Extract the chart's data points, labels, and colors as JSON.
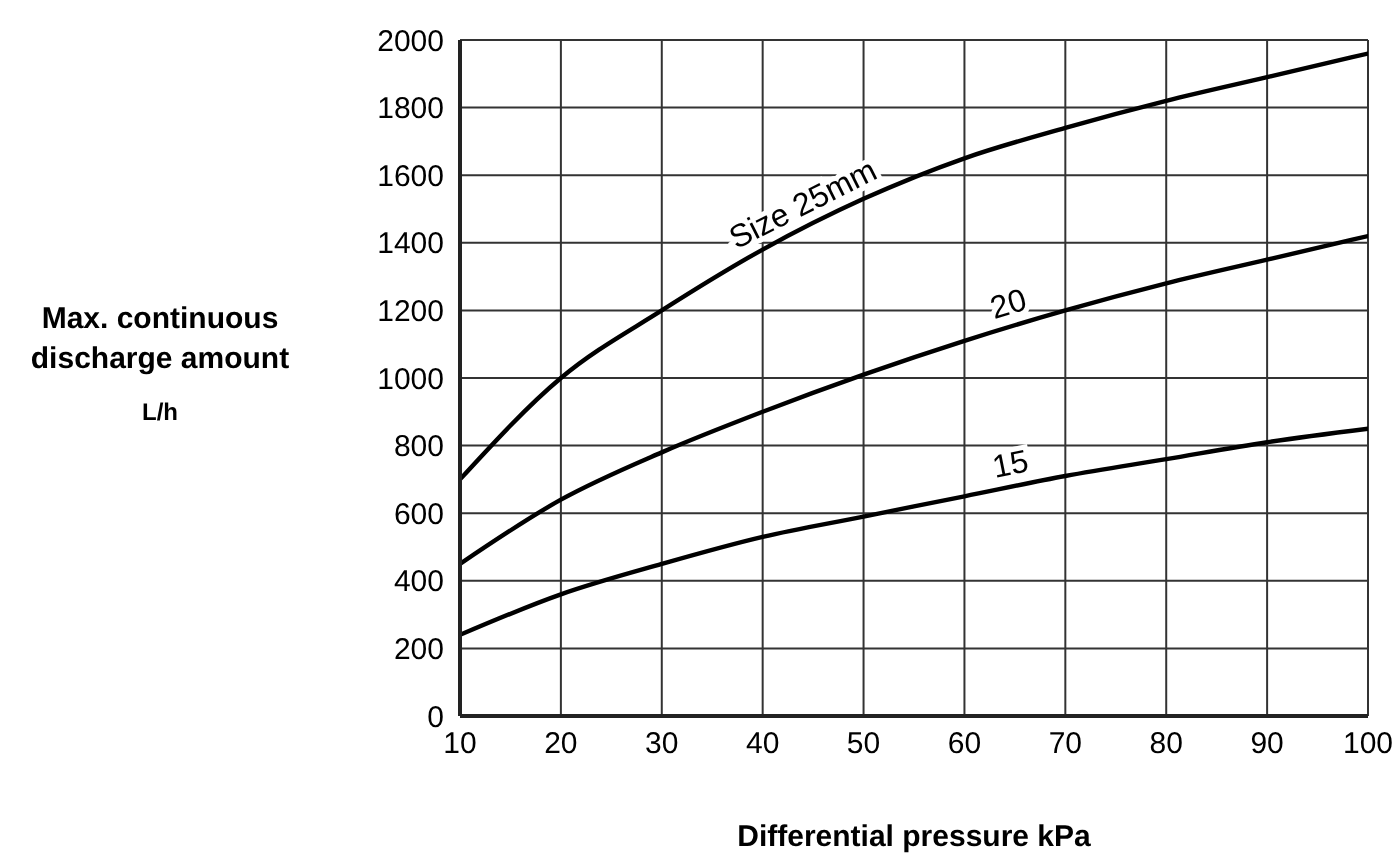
{
  "chart_data": {
    "type": "line",
    "xlabel": "Differential pressure  kPa",
    "ylabel": "Max. continuous\ndischarge amount\nL/h",
    "x": [
      10,
      20,
      30,
      40,
      50,
      60,
      70,
      80,
      90,
      100
    ],
    "series": [
      {
        "name": "Size 25mm",
        "color": "#000000",
        "values": [
          700,
          1000,
          1200,
          1380,
          1530,
          1650,
          1740,
          1820,
          1890,
          1960
        ]
      },
      {
        "name": "20",
        "color": "#000000",
        "values": [
          450,
          640,
          780,
          900,
          1010,
          1110,
          1200,
          1280,
          1350,
          1420
        ]
      },
      {
        "name": "15",
        "color": "#000000",
        "values": [
          240,
          360,
          450,
          530,
          590,
          650,
          710,
          760,
          810,
          850
        ]
      }
    ],
    "xlim": [
      10,
      100
    ],
    "xticks": [
      10,
      20,
      30,
      40,
      50,
      60,
      70,
      80,
      90,
      100
    ],
    "ylim": [
      0,
      2000
    ],
    "yticks": [
      0,
      200,
      400,
      600,
      800,
      1000,
      1200,
      1400,
      1600,
      1800,
      2000
    ],
    "grid": true,
    "marker": "none",
    "line_style": "solid"
  }
}
